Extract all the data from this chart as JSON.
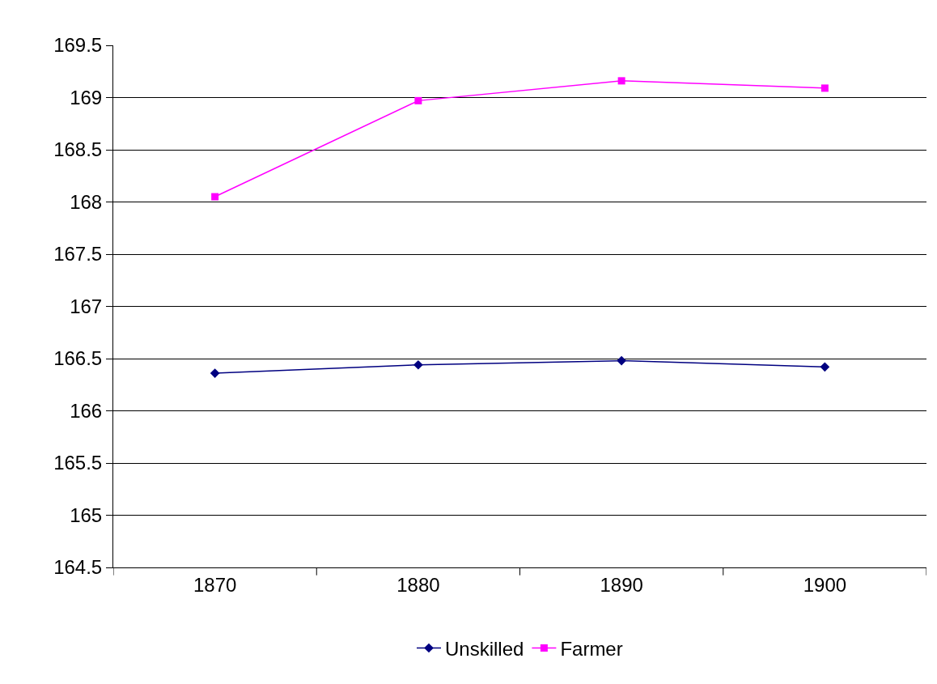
{
  "chart_data": {
    "type": "line",
    "categories": [
      "1870",
      "1880",
      "1890",
      "1900"
    ],
    "series": [
      {
        "name": "Unskilled",
        "color": "#000080",
        "marker": "diamond",
        "values": [
          166.36,
          166.44,
          166.48,
          166.42
        ]
      },
      {
        "name": "Farmer",
        "color": "#ff00ff",
        "marker": "square",
        "values": [
          168.05,
          168.97,
          169.16,
          169.09
        ]
      }
    ],
    "ylim": [
      164.5,
      169.5
    ],
    "yticks": [
      164.5,
      165,
      165.5,
      166,
      166.5,
      167,
      167.5,
      168,
      168.5,
      169,
      169.5
    ],
    "grid": "y",
    "legend": "bottom",
    "line_style": "solid"
  }
}
